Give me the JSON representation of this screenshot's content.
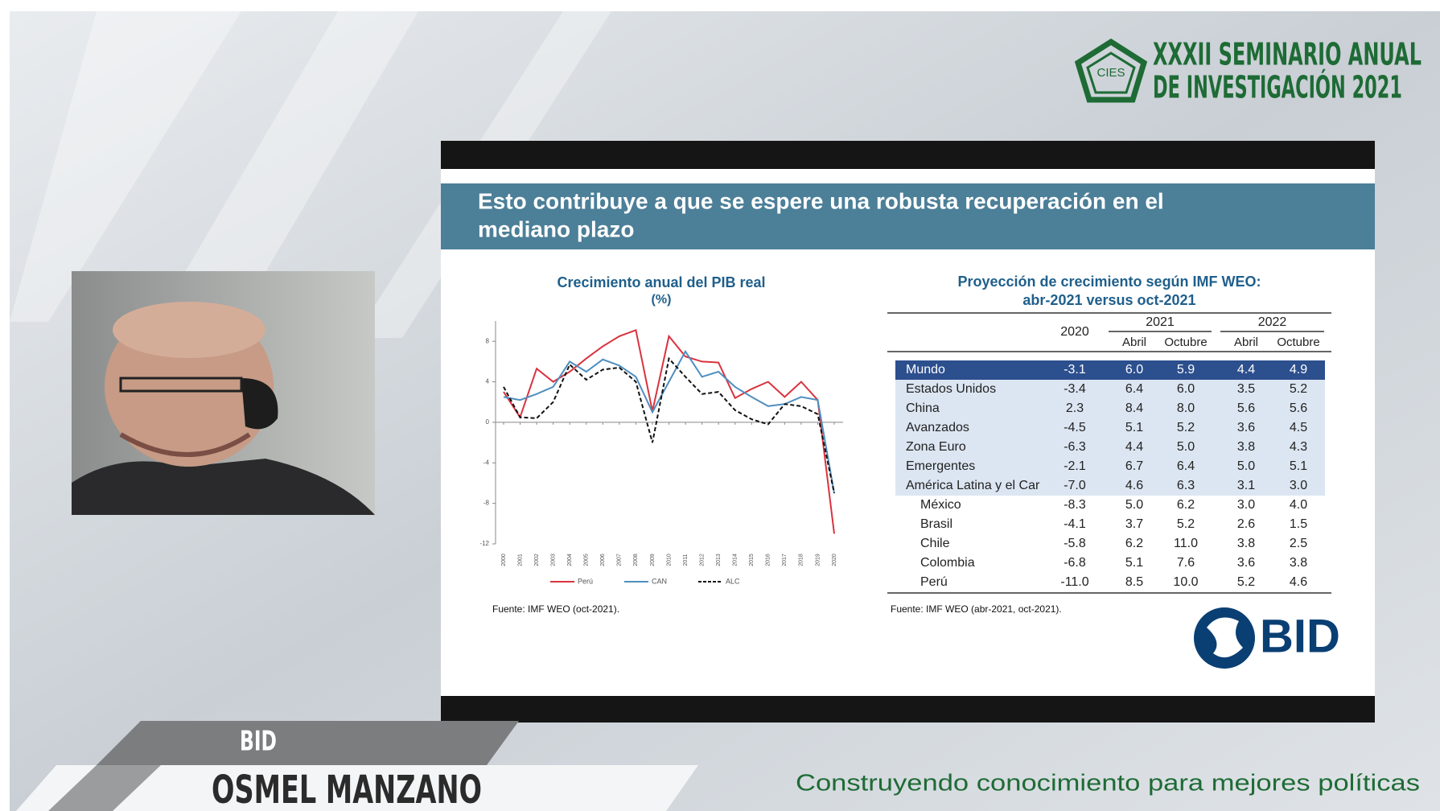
{
  "header": {
    "logo_text": "CIES",
    "title_line1": "XXXII SEMINARIO ANUAL",
    "title_line2": "DE INVESTIGACIÓN 2021"
  },
  "slide": {
    "title_line1": "Esto contribuye a que se espere una robusta recuperación en el",
    "title_line2": "mediano plazo",
    "chart": {
      "type": "line",
      "title": "Crecimiento anual del PIB real",
      "subtitle": "(%)",
      "categories": [
        "2000",
        "2001",
        "2002",
        "2003",
        "2004",
        "2005",
        "2006",
        "2007",
        "2008",
        "2009",
        "2010",
        "2011",
        "2012",
        "2013",
        "2014",
        "2015",
        "2016",
        "2017",
        "2018",
        "2019",
        "2020"
      ],
      "series": [
        {
          "name": "Perú",
          "color": "#d9333f",
          "style": "solid",
          "values": [
            3,
            0.5,
            5.3,
            4,
            5,
            6.3,
            7.5,
            8.5,
            9.1,
            1.1,
            8.5,
            6.5,
            6,
            5.9,
            2.4,
            3.3,
            4,
            2.5,
            4,
            2.2,
            -11
          ]
        },
        {
          "name": "CAN",
          "color": "#4f8fc0",
          "style": "solid",
          "values": [
            2.5,
            2.2,
            2.8,
            3.5,
            6,
            5,
            6.2,
            5.6,
            4.5,
            1,
            4,
            7,
            4.5,
            5,
            3.5,
            2.5,
            1.6,
            1.8,
            2.5,
            2.2,
            -7
          ]
        },
        {
          "name": "ALC",
          "color": "#111111",
          "style": "dashed",
          "values": [
            3.5,
            0.5,
            0.4,
            2,
            5.7,
            4.2,
            5.2,
            5.4,
            4,
            -2,
            6.3,
            4.5,
            2.8,
            3,
            1.2,
            0.3,
            -0.2,
            1.8,
            1.6,
            0.8,
            -7
          ]
        }
      ],
      "ylim": [
        -12,
        10
      ],
      "yticks": [
        -12,
        -8,
        -4,
        0,
        4,
        8
      ]
    },
    "chart_source": "Fuente: IMF WEO (oct-2021).",
    "table": {
      "title_line1": "Proyección de crecimiento según IMF WEO:",
      "title_line2": "abr-2021 versus oct-2021",
      "header": {
        "first": "2020",
        "groups": [
          {
            "label": "2021",
            "sub": [
              "Abril",
              "Octubre"
            ]
          },
          {
            "label": "2022",
            "sub": [
              "Abril",
              "Octubre"
            ]
          }
        ]
      },
      "rows": [
        [
          "Mundo",
          "-3.1",
          "6.0",
          "5.9",
          "4.4",
          "4.9"
        ],
        [
          "Estados Unidos",
          "-3.4",
          "6.4",
          "6.0",
          "3.5",
          "5.2"
        ],
        [
          "China",
          "2.3",
          "8.4",
          "8.0",
          "5.6",
          "5.6"
        ],
        [
          "Avanzados",
          "-4.5",
          "5.1",
          "5.2",
          "3.6",
          "4.5"
        ],
        [
          "Zona Euro",
          "-6.3",
          "4.4",
          "5.0",
          "3.8",
          "4.3"
        ],
        [
          "Emergentes",
          "-2.1",
          "6.7",
          "6.4",
          "5.0",
          "5.1"
        ],
        [
          "América Latina y el Car",
          "-7.0",
          "4.6",
          "6.3",
          "3.1",
          "3.0"
        ],
        [
          "México",
          "-8.3",
          "5.0",
          "6.2",
          "3.0",
          "4.0"
        ],
        [
          "Brasil",
          "-4.1",
          "3.7",
          "5.2",
          "2.6",
          "1.5"
        ],
        [
          "Chile",
          "-5.8",
          "6.2",
          "11.0",
          "3.8",
          "2.5"
        ],
        [
          "Colombia",
          "-6.8",
          "5.1",
          "7.6",
          "3.6",
          "3.8"
        ],
        [
          "Perú",
          "-11.0",
          "8.5",
          "10.0",
          "5.2",
          "4.6"
        ]
      ]
    },
    "table_source": "Fuente: IMF WEO (abr-2021, oct-2021).",
    "logo": "BID"
  },
  "banner": {
    "organization": "BID",
    "speaker": "OSMEL MANZANO"
  },
  "footer": {
    "tagline": "Construyendo conocimiento para mejores políticas"
  }
}
